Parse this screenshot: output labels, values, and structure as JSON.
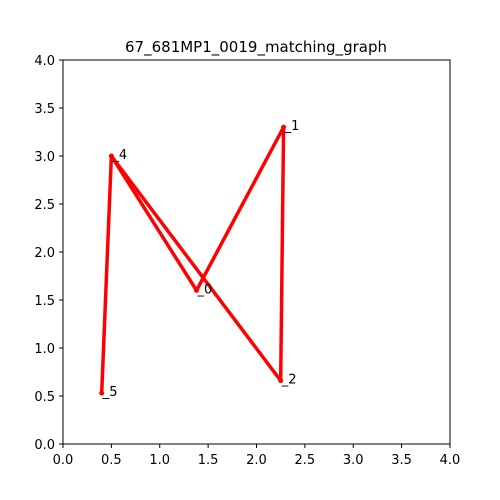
{
  "chart_data": {
    "type": "line",
    "title": "67_681MP1_0019_matching_graph",
    "xlabel": "",
    "ylabel": "",
    "xlim": [
      0.0,
      4.0
    ],
    "ylim": [
      0.0,
      4.0
    ],
    "x_ticks": [
      "0.0",
      "0.5",
      "1.0",
      "1.5",
      "2.0",
      "2.5",
      "3.0",
      "3.5",
      "4.0"
    ],
    "y_ticks": [
      "0.0",
      "0.5",
      "1.0",
      "1.5",
      "2.0",
      "2.5",
      "3.0",
      "3.5",
      "4.0"
    ],
    "grid": false,
    "edge_color": "#ff0000",
    "nodes": [
      {
        "id": "0",
        "x": 1.38,
        "y": 1.6
      },
      {
        "id": "1",
        "x": 2.28,
        "y": 3.3
      },
      {
        "id": "2",
        "x": 2.25,
        "y": 0.66
      },
      {
        "id": "4",
        "x": 0.5,
        "y": 3.0
      },
      {
        "id": "5",
        "x": 0.4,
        "y": 0.53
      }
    ],
    "edges": [
      [
        "0",
        "1"
      ],
      [
        "1",
        "2"
      ],
      [
        "2",
        "4"
      ],
      [
        "4",
        "0"
      ],
      [
        "4",
        "5"
      ]
    ]
  }
}
